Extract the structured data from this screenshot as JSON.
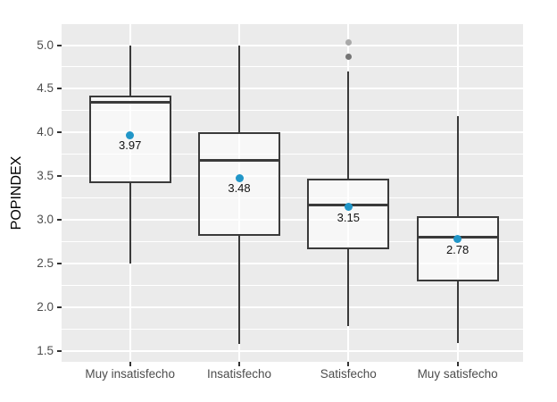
{
  "chart_data": {
    "type": "boxplot",
    "title": "",
    "xlabel": "",
    "ylabel": "POPINDEX",
    "categories": [
      "Muy insatisfecho",
      "Insatisfecho",
      "Satisfecho",
      "Muy satisfecho"
    ],
    "ylim": [
      1.38,
      5.24
    ],
    "y_major_ticks": [
      {
        "v": 5.0,
        "label": "5.0"
      },
      {
        "v": 4.5,
        "label": "4.5"
      },
      {
        "v": 4.0,
        "label": "4.0"
      },
      {
        "v": 3.5,
        "label": "3.5"
      },
      {
        "v": 3.0,
        "label": "3.0"
      },
      {
        "v": 2.5,
        "label": "2.5"
      },
      {
        "v": 2.0,
        "label": "2.0"
      },
      {
        "v": 1.5,
        "label": "1.5"
      }
    ],
    "y_minor_ticks": [
      4.75,
      4.25,
      3.75,
      3.25,
      2.75,
      2.25,
      1.75
    ],
    "grid": {
      "horizontal": "major+minor white",
      "vertical": "major white at category centers"
    },
    "legend": "none",
    "series": [
      {
        "label": "Muy insatisfecho",
        "whisker_min": 2.5,
        "q1": 3.42,
        "median": 4.35,
        "q3": 4.42,
        "whisker_max": 5.0,
        "mean": 3.97,
        "mean_label": "3.97",
        "outliers": []
      },
      {
        "label": "Insatisfecho",
        "whisker_min": 1.58,
        "q1": 2.82,
        "median": 3.68,
        "q3": 4.0,
        "whisker_max": 5.0,
        "mean": 3.48,
        "mean_label": "3.48",
        "outliers": []
      },
      {
        "label": "Satisfecho",
        "whisker_min": 1.79,
        "q1": 2.67,
        "median": 3.17,
        "q3": 3.47,
        "whisker_max": 4.7,
        "mean": 3.15,
        "mean_label": "3.15",
        "outliers": [
          {
            "value": 5.03,
            "color": "#A9A9A9"
          },
          {
            "value": 4.87,
            "color": "#757575"
          }
        ]
      },
      {
        "label": "Muy satisfecho",
        "whisker_min": 1.59,
        "q1": 2.3,
        "median": 2.8,
        "q3": 3.04,
        "whisker_max": 4.19,
        "mean": 2.78,
        "mean_label": "2.78",
        "outliers": []
      }
    ],
    "colors": {
      "panel_bg": "#EBEBEB",
      "grid": "#FFFFFF",
      "box_border": "#3A3A3A",
      "median_line": "#3A3A3A",
      "mean_point": "#2196C8",
      "tick_text": "#4D4D4D",
      "axis_title": "#000000"
    }
  }
}
